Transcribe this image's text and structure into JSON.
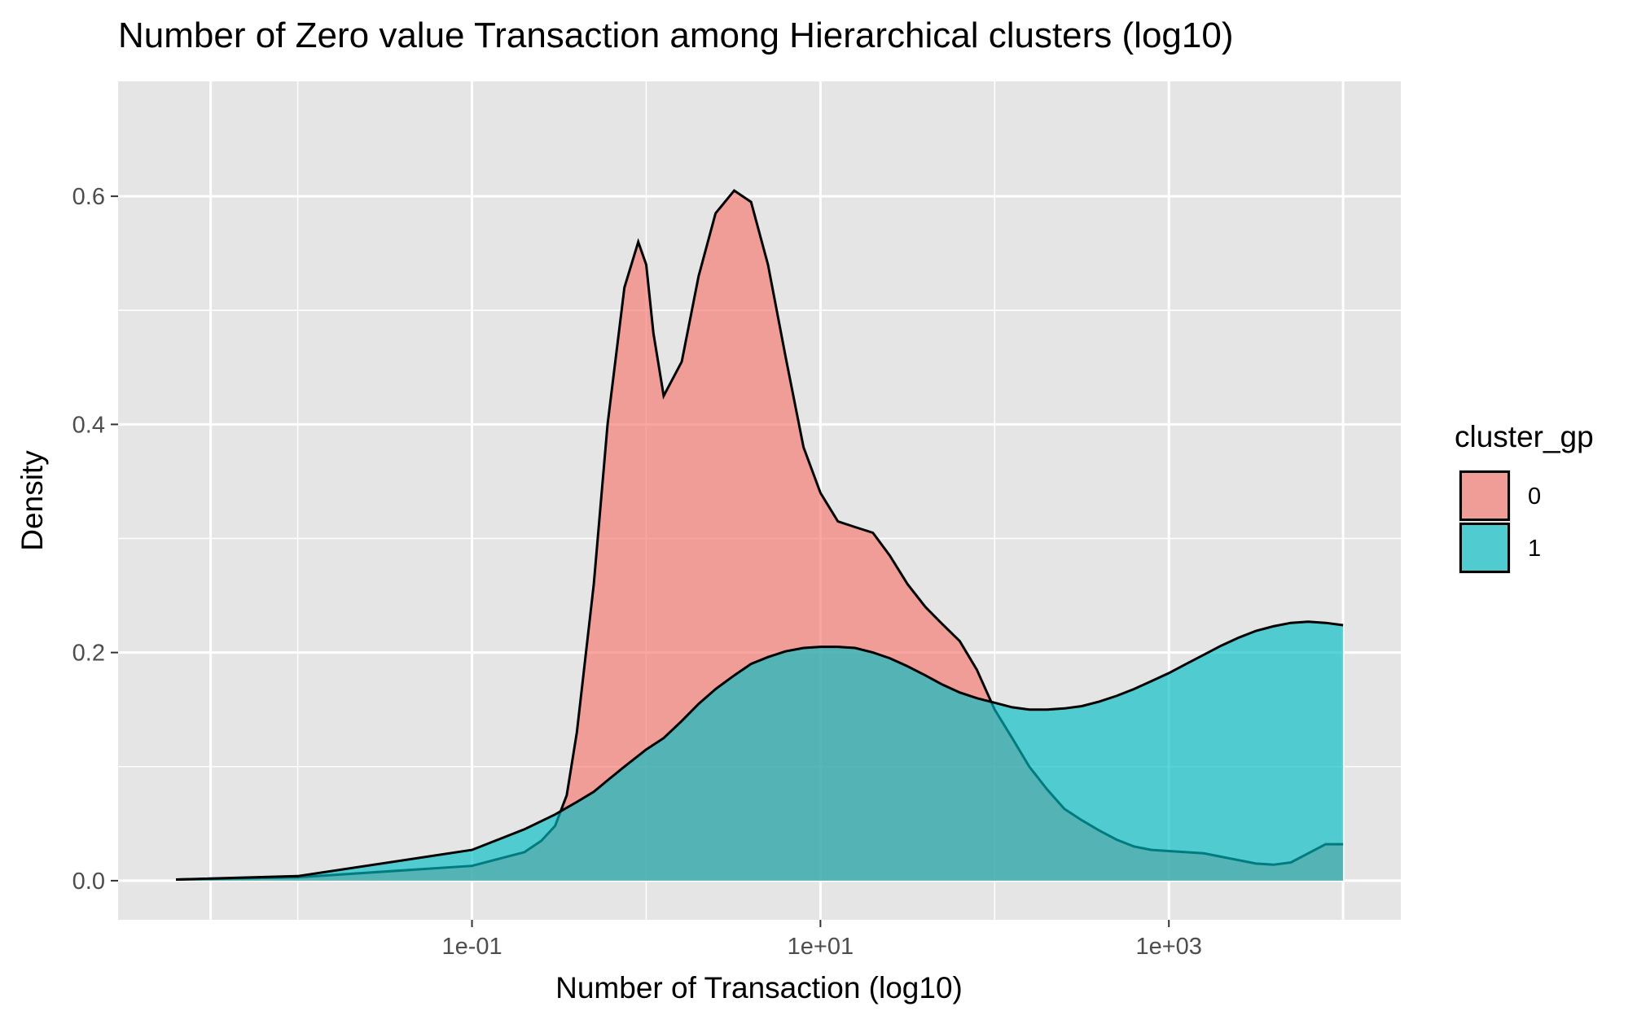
{
  "chart_data": {
    "type": "area",
    "title": "Number of Zero value Transaction among Hierarchical clusters (log10)",
    "xlabel": "Number of Transaction (log10)",
    "ylabel": "Density",
    "x_scale": "log10",
    "x_range_exponent": [
      -2.7,
      4.0
    ],
    "xlim": [
      0.002,
      10000
    ],
    "ylim": [
      0,
      0.6
    ],
    "x_ticks": [
      {
        "value": 0.1,
        "label": "1e-01"
      },
      {
        "value": 10,
        "label": "1e+01"
      },
      {
        "value": 1000,
        "label": "1e+03"
      }
    ],
    "y_ticks": [
      {
        "value": 0,
        "label": "0.0"
      },
      {
        "value": 0.2,
        "label": "0.2"
      },
      {
        "value": 0.4,
        "label": "0.4"
      },
      {
        "value": 0.6,
        "label": "0.6"
      }
    ],
    "grid": true,
    "legend": {
      "title": "cluster_gp",
      "position": "right"
    },
    "colors": {
      "panel": "#e5e5e5",
      "grid": "#ffffff",
      "outline": "#000000"
    },
    "series": [
      {
        "name": "0",
        "color": "#f8766d",
        "x": [
          0.002,
          0.01,
          0.1,
          0.2,
          0.25,
          0.3,
          0.35,
          0.4,
          0.5,
          0.6,
          0.75,
          0.9,
          1.0,
          1.1,
          1.26,
          1.6,
          2.0,
          2.5,
          3.2,
          4.0,
          5.0,
          6.3,
          8.0,
          10,
          12.6,
          15.8,
          20,
          25,
          31.6,
          40,
          50,
          63,
          79,
          100,
          126,
          158,
          200,
          251,
          316,
          398,
          501,
          631,
          794,
          1000,
          1259,
          1585,
          1995,
          2512,
          3162,
          3981,
          5012,
          6310,
          7943,
          10000
        ],
        "values": [
          0.001,
          0.003,
          0.013,
          0.025,
          0.035,
          0.048,
          0.075,
          0.13,
          0.26,
          0.4,
          0.52,
          0.56,
          0.54,
          0.48,
          0.425,
          0.455,
          0.53,
          0.585,
          0.605,
          0.595,
          0.54,
          0.46,
          0.38,
          0.34,
          0.315,
          0.31,
          0.305,
          0.285,
          0.26,
          0.24,
          0.225,
          0.21,
          0.185,
          0.15,
          0.125,
          0.1,
          0.08,
          0.063,
          0.053,
          0.044,
          0.036,
          0.03,
          0.027,
          0.026,
          0.025,
          0.024,
          0.021,
          0.018,
          0.015,
          0.014,
          0.016,
          0.024,
          0.032,
          0.032
        ]
      },
      {
        "name": "1",
        "color": "#00bfc4",
        "x": [
          0.002,
          0.01,
          0.1,
          0.2,
          0.3,
          0.4,
          0.5,
          0.6,
          0.75,
          1.0,
          1.26,
          1.6,
          2.0,
          2.5,
          3.2,
          4.0,
          5.0,
          6.3,
          8.0,
          10,
          12.6,
          15.8,
          20,
          25,
          31.6,
          40,
          50,
          63,
          79,
          100,
          126,
          158,
          200,
          251,
          316,
          398,
          501,
          631,
          794,
          1000,
          1259,
          1585,
          1995,
          2512,
          3162,
          3981,
          5012,
          6310,
          7943,
          10000
        ],
        "values": [
          0.001,
          0.004,
          0.027,
          0.045,
          0.058,
          0.069,
          0.078,
          0.088,
          0.1,
          0.115,
          0.125,
          0.14,
          0.155,
          0.168,
          0.18,
          0.19,
          0.196,
          0.201,
          0.204,
          0.205,
          0.205,
          0.204,
          0.2,
          0.195,
          0.188,
          0.18,
          0.172,
          0.165,
          0.16,
          0.156,
          0.152,
          0.15,
          0.15,
          0.151,
          0.153,
          0.157,
          0.162,
          0.168,
          0.175,
          0.182,
          0.19,
          0.198,
          0.206,
          0.213,
          0.219,
          0.223,
          0.226,
          0.227,
          0.226,
          0.224
        ]
      }
    ]
  }
}
